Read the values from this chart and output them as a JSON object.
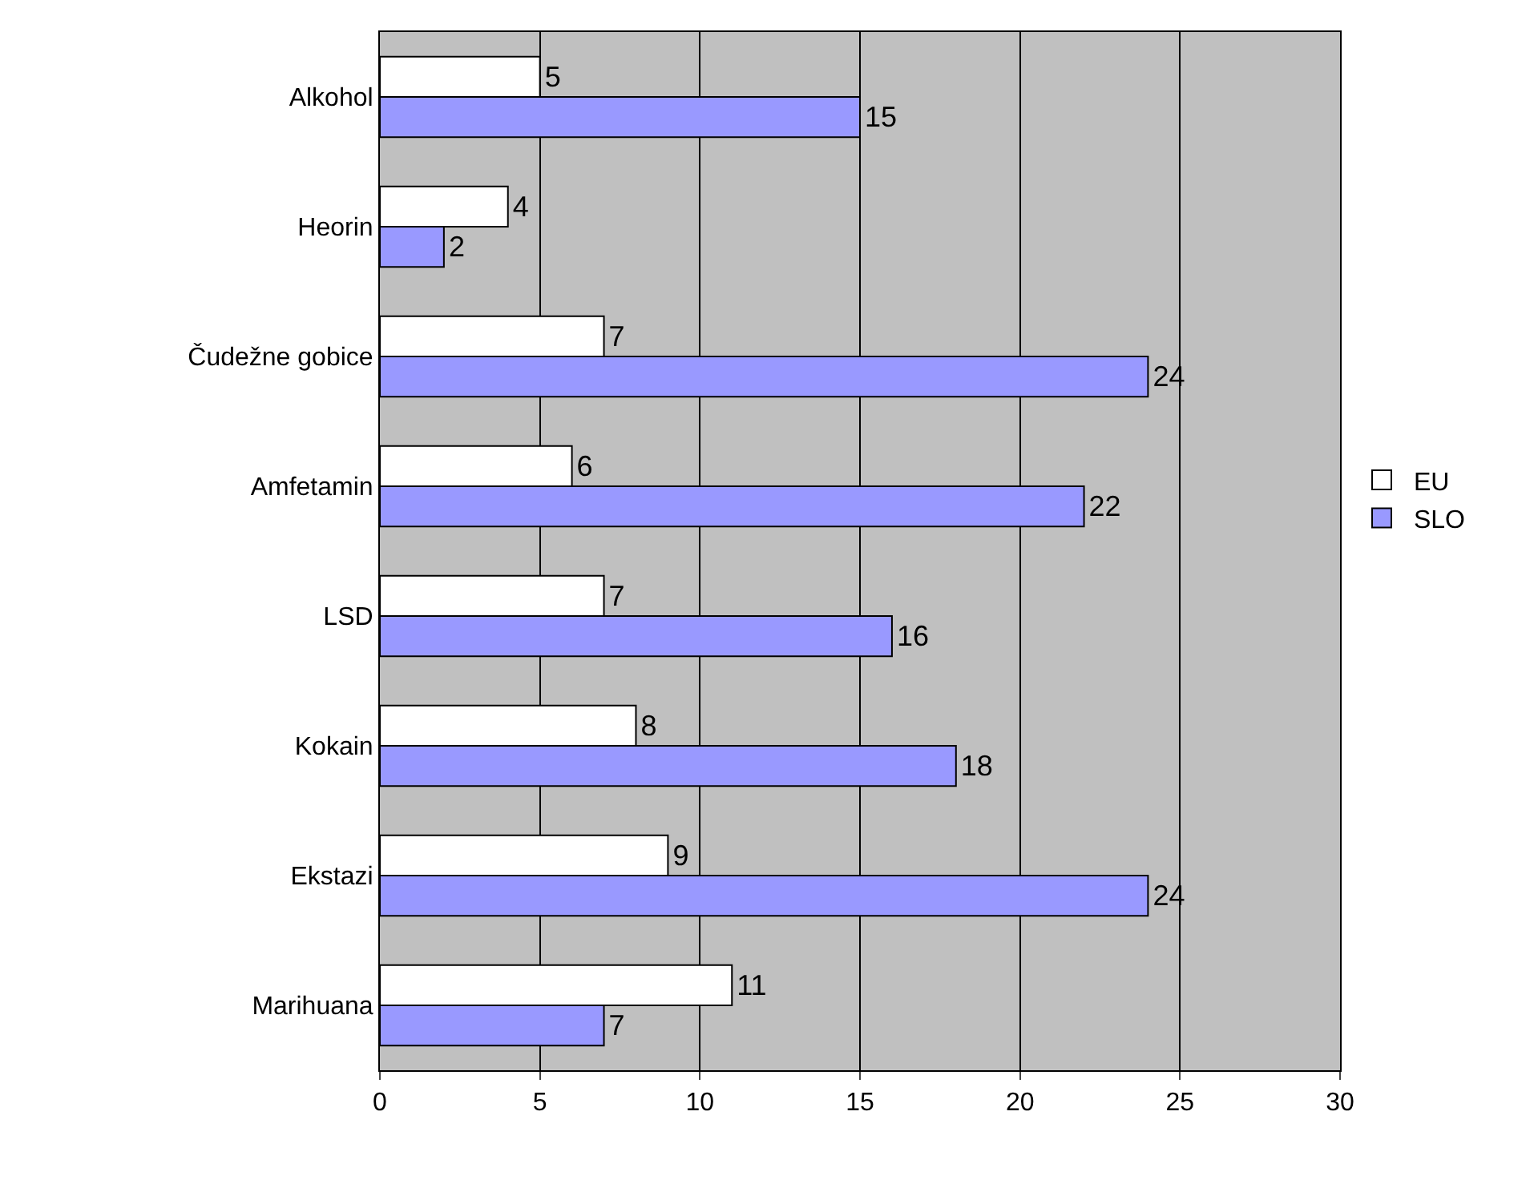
{
  "chart_data": {
    "type": "bar",
    "orientation": "horizontal",
    "categories": [
      "Alkohol",
      "Heorin",
      "Čudežne gobice",
      "Amfetamin",
      "LSD",
      "Kokain",
      "Ekstazi",
      "Marihuana"
    ],
    "series": [
      {
        "name": "EU",
        "color": "#ffffff",
        "values": [
          5,
          4,
          7,
          6,
          7,
          8,
          9,
          11
        ]
      },
      {
        "name": "SLO",
        "color": "#9999ff",
        "values": [
          15,
          2,
          24,
          22,
          16,
          18,
          24,
          7
        ]
      }
    ],
    "xlim": [
      0,
      30
    ],
    "xticks": [
      0,
      5,
      10,
      15,
      20,
      25,
      30
    ],
    "grid": "x",
    "legend": "right",
    "data_labels": true
  }
}
